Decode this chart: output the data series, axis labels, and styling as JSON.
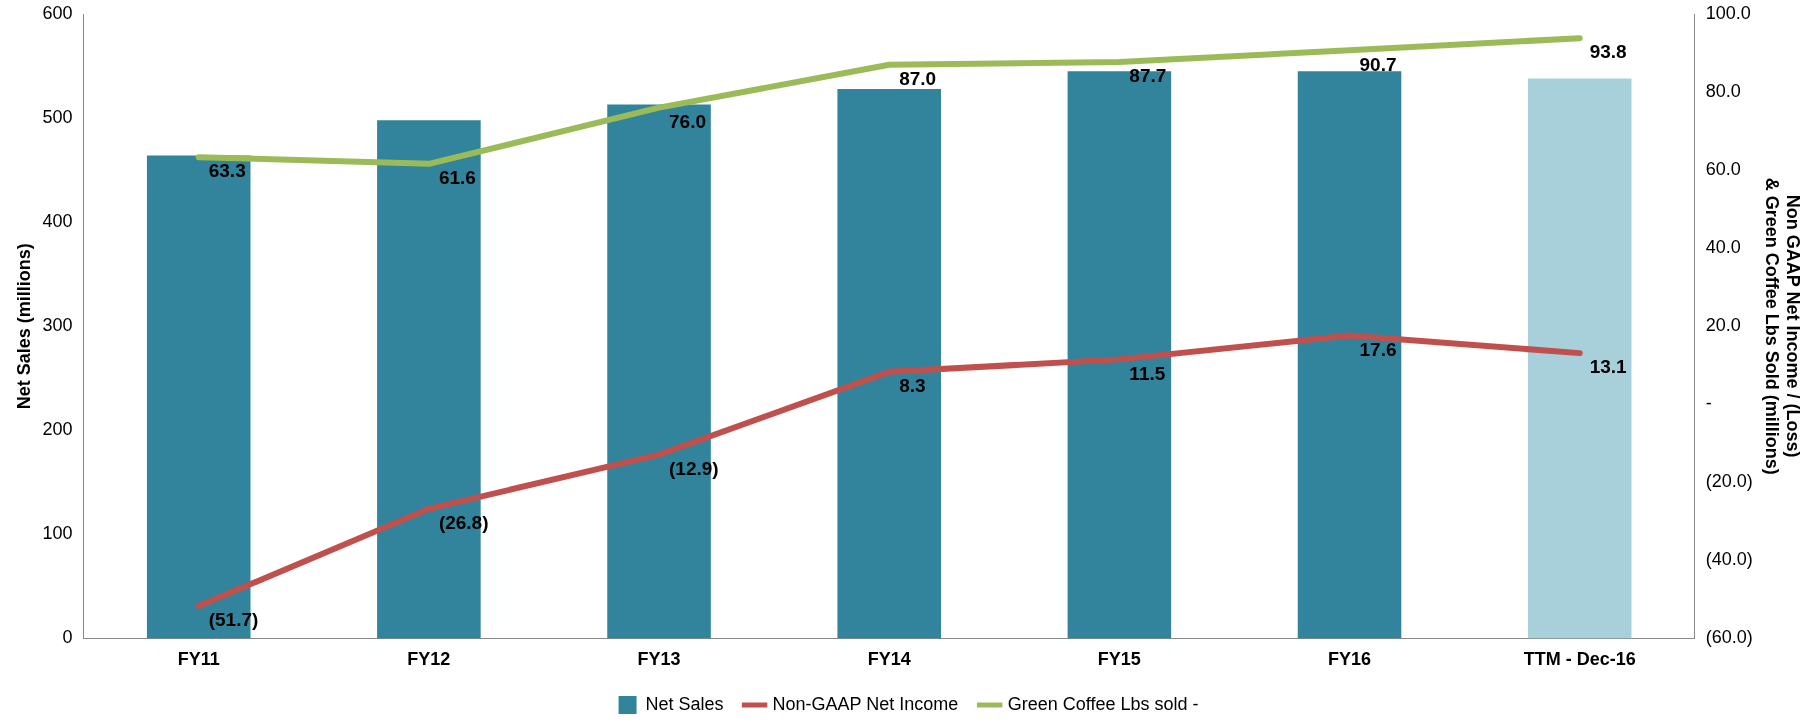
{
  "chart_data": {
    "type": "bar",
    "categories": [
      "FY11",
      "FY12",
      "FY13",
      "FY14",
      "FY15",
      "FY16",
      "TTM - Dec-16"
    ],
    "ylabel": "Net Sales (millions)",
    "y2label": "Non GAAP Net Income / (Loss)\n& Green Coffee Lbs Sold (millions)",
    "ylim": [
      0,
      600
    ],
    "yticks": [
      0,
      100,
      200,
      300,
      400,
      500,
      600
    ],
    "y2lim": [
      -60,
      100
    ],
    "y2ticks": [
      {
        "value": -60,
        "label": "(60.0)"
      },
      {
        "value": -40,
        "label": "(40.0)"
      },
      {
        "value": -20,
        "label": "(20.0)"
      },
      {
        "value": 0,
        "label": "-"
      },
      {
        "value": 20,
        "label": "20.0"
      },
      {
        "value": 40,
        "label": "40.0"
      },
      {
        "value": 60,
        "label": "60.0"
      },
      {
        "value": 80,
        "label": "80.0"
      },
      {
        "value": 100,
        "label": "100.0"
      }
    ],
    "grid": false,
    "legend": "bottom",
    "series": [
      {
        "name": "Net Sales",
        "color": "#31849b",
        "colors": [
          "#31849b",
          "#31849b",
          "#31849b",
          "#31849b",
          "#31849b",
          "#31849b",
          "#a8d0db"
        ],
        "values": [
          464,
          498,
          513,
          528,
          545,
          545,
          538
        ]
      },
      {
        "name": "Non-GAAP Net Income",
        "type": "line",
        "axis": "y2",
        "color": "#c0504d",
        "values": [
          -51.7,
          -26.8,
          -12.9,
          8.3,
          11.5,
          17.6,
          13.1
        ],
        "value_labels": [
          "(51.7)",
          "(26.8)",
          "(12.9)",
          "8.3",
          "11.5",
          "17.6",
          "13.1"
        ]
      },
      {
        "name": "Green Coffee Lbs sold -",
        "type": "line",
        "axis": "y2",
        "color": "#9bbb59",
        "values": [
          63.3,
          61.6,
          76.0,
          87.0,
          87.7,
          90.7,
          93.8
        ],
        "value_labels": [
          "63.3",
          "61.6",
          "76.0",
          "87.0",
          "87.7",
          "90.7",
          "93.8"
        ]
      }
    ]
  }
}
